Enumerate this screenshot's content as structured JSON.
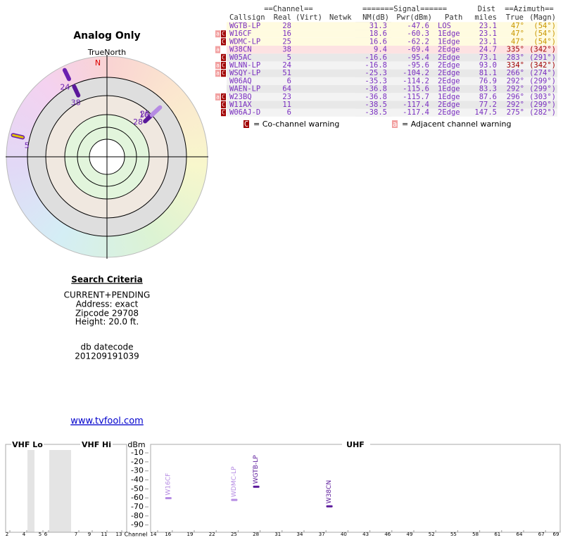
{
  "radar": {
    "title": "Analog Only",
    "north_label": "TrueNorth",
    "n": "N"
  },
  "table": {
    "group_headers": [
      "==Channel==",
      "=======Signal======",
      "Dist",
      "==Azimuth=="
    ],
    "headers": [
      "Callsign",
      "Real",
      "(Virt)",
      "Netwk",
      "NM(dB)",
      "Pwr(dBm)",
      "Path",
      "miles",
      "True",
      "(Magn)"
    ],
    "rows": [
      {
        "warn": {},
        "callsign": "WGTB-LP",
        "real": 28,
        "nm": 31.3,
        "pwr": -47.6,
        "path": "LOS",
        "dist": 23.1,
        "az": {
          "value": 47,
          "label": "47°"
        },
        "magn": "(54°)",
        "bg": "#fffbe0",
        "az_color": "#c89600",
        "color": "#5a189a"
      },
      {
        "warn": {
          "adj": "a",
          "co": "C"
        },
        "callsign": "W16CF",
        "real": 16,
        "nm": 18.6,
        "pwr": -60.3,
        "path": "1Edge",
        "dist": 23.1,
        "az": {
          "value": 47,
          "label": "47°"
        },
        "magn": "(54°)",
        "bg": "#fffbe0",
        "az_color": "#c89600",
        "color": "#b58be3"
      },
      {
        "warn": {
          "co": "C"
        },
        "callsign": "WDMC-LP",
        "real": 25,
        "nm": 16.6,
        "pwr": -62.2,
        "path": "1Edge",
        "dist": 23.1,
        "az": {
          "value": 47,
          "label": "47°"
        },
        "magn": "(54°)",
        "bg": "#fffbe0",
        "az_color": "#c89600",
        "color": "#b58be3"
      },
      {
        "warn": {
          "adj": "a"
        },
        "callsign": "W38CN",
        "real": 38,
        "nm": 9.4,
        "pwr": -69.4,
        "path": "2Edge",
        "dist": 24.7,
        "az": {
          "value": 335,
          "label": "335°"
        },
        "magn": "(342°)",
        "bg": "#fde2e2",
        "az_color": "#a00000",
        "color": "#5a189a"
      },
      {
        "warn": {
          "co": "C"
        },
        "callsign": "W05AC",
        "real": 5,
        "nm": -16.6,
        "pwr": -95.4,
        "path": "2Edge",
        "dist": 73.1,
        "az": {
          "value": 283,
          "label": "283°"
        },
        "magn": "(291°)",
        "bg": "#e8e8e8",
        "az_color": "#7a2fc0",
        "color": "#e0c200"
      },
      {
        "warn": {
          "adj": "a",
          "co": "C"
        },
        "callsign": "WLNN-LP",
        "real": 24,
        "nm": -16.8,
        "pwr": -95.6,
        "path": "2Edge",
        "dist": "93.0",
        "az": {
          "value": 334,
          "label": "334°"
        },
        "magn": "(342°)",
        "bg": "#f3f3f3",
        "az_color": "#a00000",
        "color": "#6a1fb0"
      },
      {
        "warn": {
          "adj": "a",
          "co": "C"
        },
        "callsign": "WSQY-LP",
        "real": 51,
        "nm": -25.3,
        "pwr": -104.2,
        "path": "2Edge",
        "dist": 81.1,
        "az": {
          "value": 266,
          "label": "266°"
        },
        "magn": "(274°)",
        "bg": "#e8e8e8",
        "az_color": "#7a2fc0",
        "color": "#6a1fb0"
      },
      {
        "warn": {},
        "callsign": "W06AQ",
        "real": 6,
        "nm": -35.3,
        "pwr": -114.2,
        "path": "2Edge",
        "dist": 76.9,
        "az": {
          "value": 292,
          "label": "292°"
        },
        "magn": "(299°)",
        "bg": "#f3f3f3",
        "az_color": "#7a2fc0",
        "color": "#6a1fb0"
      },
      {
        "warn": {},
        "callsign": "WAEN-LP",
        "real": 64,
        "nm": -36.8,
        "pwr": -115.6,
        "path": "1Edge",
        "dist": 83.3,
        "az": {
          "value": 292,
          "label": "292°"
        },
        "magn": "(299°)",
        "bg": "#e8e8e8",
        "az_color": "#7a2fc0",
        "color": "#6a1fb0"
      },
      {
        "warn": {
          "adj": "a",
          "co": "C"
        },
        "callsign": "W23BQ",
        "real": 23,
        "nm": -36.8,
        "pwr": -115.7,
        "path": "1Edge",
        "dist": 87.6,
        "az": {
          "value": 296,
          "label": "296°"
        },
        "magn": "(303°)",
        "bg": "#f3f3f3",
        "az_color": "#7a2fc0",
        "color": "#6a1fb0"
      },
      {
        "warn": {
          "co": "C"
        },
        "callsign": "W11AX",
        "real": 11,
        "nm": -38.5,
        "pwr": -117.4,
        "path": "2Edge",
        "dist": 77.2,
        "az": {
          "value": 292,
          "label": "292°"
        },
        "magn": "(299°)",
        "bg": "#e8e8e8",
        "az_color": "#7a2fc0",
        "color": "#6a1fb0"
      },
      {
        "warn": {
          "co": "C"
        },
        "callsign": "W06AJ-D",
        "real": 6,
        "nm": -38.5,
        "pwr": -117.4,
        "path": "2Edge",
        "dist": 147.5,
        "az": {
          "value": 275,
          "label": "275°"
        },
        "magn": "(282°)",
        "bg": "#f3f3f3",
        "az_color": "#7a2fc0",
        "color": "#6a1fb0"
      }
    ]
  },
  "legend": {
    "co_icon": "C",
    "co_text": "= Co-channel warning",
    "adj_icon": "a",
    "adj_text": "= Adjacent channel warning"
  },
  "criteria": {
    "title": "Search Criteria",
    "lines": [
      "CURRENT+PENDING",
      "Address: exact",
      "Zipcode 29708",
      "Height: 20.0 ft."
    ],
    "db_label": "db datecode",
    "db_value": "201209191039",
    "link": "www.tvfool.com"
  },
  "spectrum": {
    "sections": [
      "VHF Lo",
      "VHF Hi",
      "UHF"
    ],
    "y_label": "dBm",
    "x_label": "Channel",
    "ylim": [
      -95,
      -4.5
    ],
    "yticks": [
      -10,
      -20,
      -30,
      -40,
      -50,
      -60,
      -70,
      -80,
      -90
    ],
    "vhf_channels": [
      2,
      4,
      5,
      6,
      7,
      9,
      11,
      13
    ],
    "uhf_xlim": [
      14,
      69
    ],
    "uhf_channels": [
      14,
      16,
      19,
      22,
      25,
      28,
      31,
      34,
      37,
      40,
      43,
      46,
      49,
      52,
      55,
      58,
      61,
      64,
      67,
      69
    ]
  }
}
